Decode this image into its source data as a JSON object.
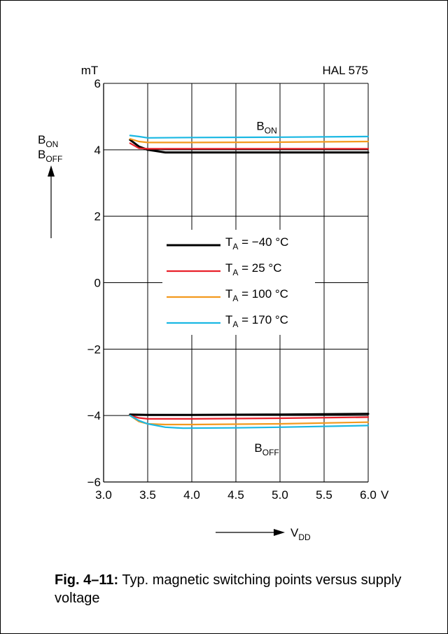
{
  "chart_data": {
    "type": "line",
    "title": "HAL 575",
    "ylabel_unit": "mT",
    "xlabel_unit": "V",
    "ylabel": {
      "top": {
        "main": "B",
        "sub": "ON"
      },
      "bottom": {
        "main": "B",
        "sub": "OFF"
      }
    },
    "xlabel": {
      "main": "V",
      "sub": "DD"
    },
    "xlim": [
      3.0,
      6.0
    ],
    "ylim": [
      -6,
      6
    ],
    "xticks": [
      3.0,
      3.5,
      4.0,
      4.5,
      5.0,
      5.5,
      6.0
    ],
    "xtick_labels": [
      "3.0",
      "3.5",
      "4.0",
      "4.5",
      "5.0",
      "5.5",
      "6.0"
    ],
    "yticks": [
      -6,
      -4,
      -2,
      0,
      2,
      4,
      6
    ],
    "ytick_labels": [
      "−6",
      "−4",
      "−2",
      "0",
      "2",
      "4",
      "6"
    ],
    "grid": true,
    "legend_position": "center",
    "annotations": {
      "on": {
        "main": "B",
        "sub": "ON",
        "x": 4.85,
        "y": 4.6
      },
      "off": {
        "main": "B",
        "sub": "OFF",
        "x": 4.85,
        "y": -4.8
      }
    },
    "series": [
      {
        "label": {
          "pre": "T",
          "sub": "A",
          "post": " = −40 °C"
        },
        "color": "#000000",
        "on": {
          "x": [
            3.3,
            3.4,
            3.5,
            3.7,
            4.0,
            5.0,
            6.0
          ],
          "y": [
            4.3,
            4.1,
            4.0,
            3.92,
            3.92,
            3.92,
            3.92
          ]
        },
        "off": {
          "x": [
            3.3,
            3.5,
            4.0,
            5.0,
            6.0
          ],
          "y": [
            -3.97,
            -3.98,
            -3.98,
            -3.97,
            -3.95
          ]
        }
      },
      {
        "label": {
          "pre": "T",
          "sub": "A",
          "post": " = 25 °C"
        },
        "color": "#e8202a",
        "on": {
          "x": [
            3.3,
            3.4,
            3.5,
            4.0,
            5.0,
            6.0
          ],
          "y": [
            4.2,
            4.05,
            4.03,
            4.03,
            4.03,
            4.03
          ]
        },
        "off": {
          "x": [
            3.3,
            3.4,
            3.5,
            4.0,
            5.0,
            6.0
          ],
          "y": [
            -4.0,
            -4.07,
            -4.1,
            -4.1,
            -4.08,
            -4.05
          ]
        }
      },
      {
        "label": {
          "pre": "T",
          "sub": "A",
          "post": " = 100 °C"
        },
        "color": "#f39a1e",
        "on": {
          "x": [
            3.3,
            3.4,
            3.5,
            4.0,
            5.0,
            6.0
          ],
          "y": [
            4.33,
            4.25,
            4.22,
            4.22,
            4.23,
            4.25
          ]
        },
        "off": {
          "x": [
            3.3,
            3.4,
            3.5,
            3.7,
            4.0,
            5.0,
            6.0
          ],
          "y": [
            -4.0,
            -4.18,
            -4.25,
            -4.27,
            -4.27,
            -4.25,
            -4.2
          ]
        }
      },
      {
        "label": {
          "pre": "T",
          "sub": "A",
          "post": " = 170 °C"
        },
        "color": "#1ab8e3",
        "on": {
          "x": [
            3.3,
            3.4,
            3.5,
            4.0,
            5.0,
            6.0
          ],
          "y": [
            4.43,
            4.4,
            4.36,
            4.37,
            4.38,
            4.4
          ]
        },
        "off": {
          "x": [
            3.3,
            3.4,
            3.5,
            3.7,
            3.9,
            4.5,
            5.0,
            6.0
          ],
          "y": [
            -4.0,
            -4.15,
            -4.25,
            -4.35,
            -4.38,
            -4.37,
            -4.35,
            -4.3
          ]
        }
      }
    ]
  },
  "caption": {
    "label": "Fig. 4–11:",
    "text": " Typ. magnetic switching points versus supply voltage"
  }
}
